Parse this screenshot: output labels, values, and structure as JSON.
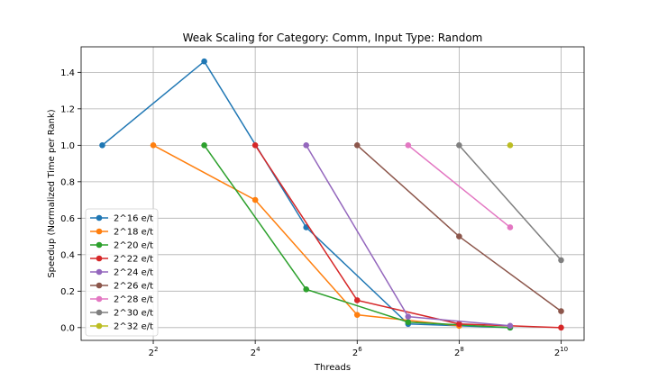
{
  "chart_data": {
    "type": "line",
    "title": "Weak Scaling for Category: Comm, Input Type: Random",
    "xlabel": "Threads",
    "ylabel": "Speedup (Normalized Time per Rank)",
    "x_scale": "log2",
    "x_ticks": [
      {
        "value": 4,
        "base": "2",
        "exp": "2"
      },
      {
        "value": 16,
        "base": "2",
        "exp": "4"
      },
      {
        "value": 64,
        "base": "2",
        "exp": "6"
      },
      {
        "value": 256,
        "base": "2",
        "exp": "8"
      },
      {
        "value": 1024,
        "base": "2",
        "exp": "10"
      }
    ],
    "xlim": [
      1.5,
      1400
    ],
    "ylim": [
      -0.07,
      1.54
    ],
    "y_ticks": [
      "0.0",
      "0.2",
      "0.4",
      "0.6",
      "0.8",
      "1.0",
      "1.2",
      "1.4"
    ],
    "grid": true,
    "legend_position": "bottom-left",
    "series": [
      {
        "name": "2^16 e/t",
        "color": "#1f77b4",
        "x": [
          2,
          8,
          32,
          128,
          512
        ],
        "y": [
          1.0,
          1.46,
          0.55,
          0.02,
          0.0
        ]
      },
      {
        "name": "2^18 e/t",
        "color": "#ff7f0e",
        "x": [
          4,
          16,
          64,
          256
        ],
        "y": [
          1.0,
          0.7,
          0.07,
          0.01
        ]
      },
      {
        "name": "2^20 e/t",
        "color": "#2ca02c",
        "x": [
          8,
          32,
          128,
          512
        ],
        "y": [
          1.0,
          0.21,
          0.03,
          0.0
        ]
      },
      {
        "name": "2^22 e/t",
        "color": "#d62728",
        "x": [
          16,
          64,
          256,
          1024
        ],
        "y": [
          1.0,
          0.15,
          0.02,
          0.0
        ]
      },
      {
        "name": "2^24 e/t",
        "color": "#9467bd",
        "x": [
          32,
          128,
          512
        ],
        "y": [
          1.0,
          0.06,
          0.01
        ]
      },
      {
        "name": "2^26 e/t",
        "color": "#8c564b",
        "x": [
          64,
          256,
          1024
        ],
        "y": [
          1.0,
          0.5,
          0.09
        ]
      },
      {
        "name": "2^28 e/t",
        "color": "#e377c2",
        "x": [
          128,
          512
        ],
        "y": [
          1.0,
          0.55
        ]
      },
      {
        "name": "2^30 e/t",
        "color": "#7f7f7f",
        "x": [
          256,
          1024
        ],
        "y": [
          1.0,
          0.37
        ]
      },
      {
        "name": "2^32 e/t",
        "color": "#bcbd22",
        "x": [
          512
        ],
        "y": [
          1.0
        ]
      }
    ]
  }
}
